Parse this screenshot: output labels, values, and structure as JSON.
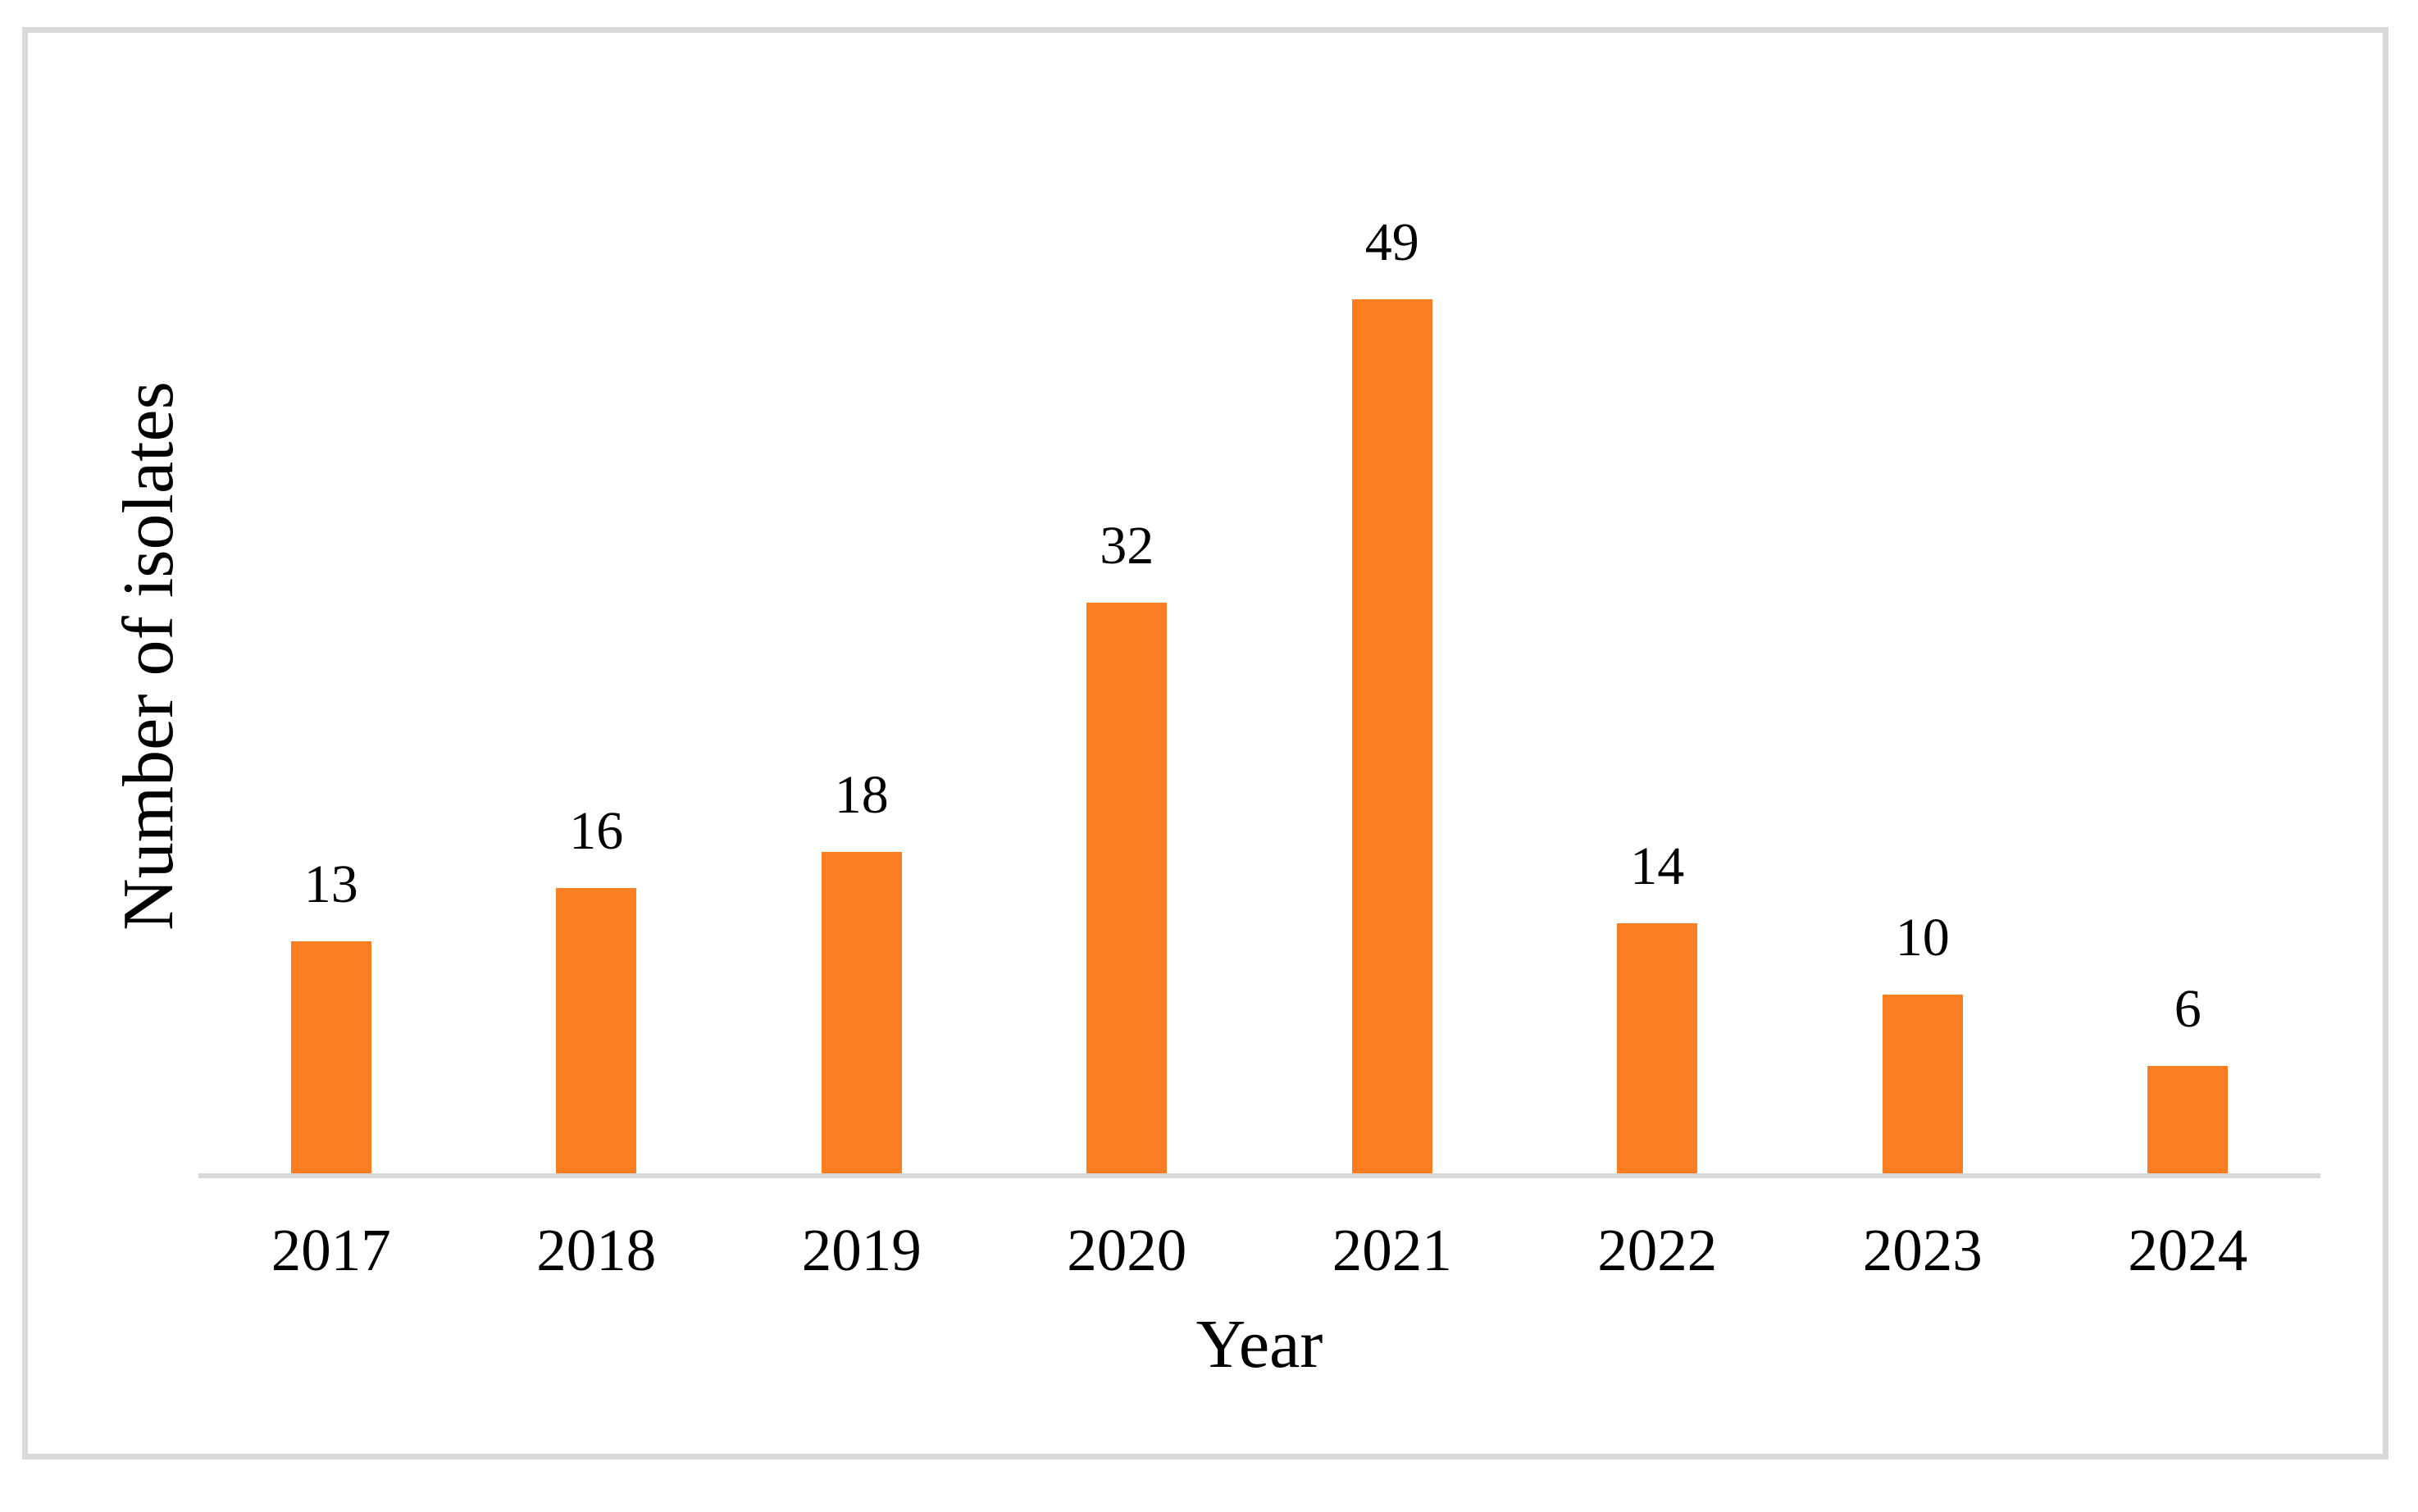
{
  "chart_data": {
    "type": "bar",
    "categories": [
      "2017",
      "2018",
      "2019",
      "2020",
      "2021",
      "2022",
      "2023",
      "2024"
    ],
    "values": [
      13,
      16,
      18,
      32,
      49,
      14,
      10,
      6
    ],
    "data_labels": [
      "13",
      "16",
      "18",
      "32",
      "49",
      "14",
      "10",
      "6"
    ],
    "title": "",
    "xlabel": "Year",
    "ylabel": "Number of isolates",
    "ylim": [
      0,
      49
    ],
    "grid": false,
    "legend": null,
    "axis_ticks_y": [],
    "colors": {
      "bar": "#fb7e23",
      "axis_line": "#d9d9d9",
      "frame_border": "#d9d9d9",
      "text": "#000000",
      "background": "#ffffff"
    }
  }
}
